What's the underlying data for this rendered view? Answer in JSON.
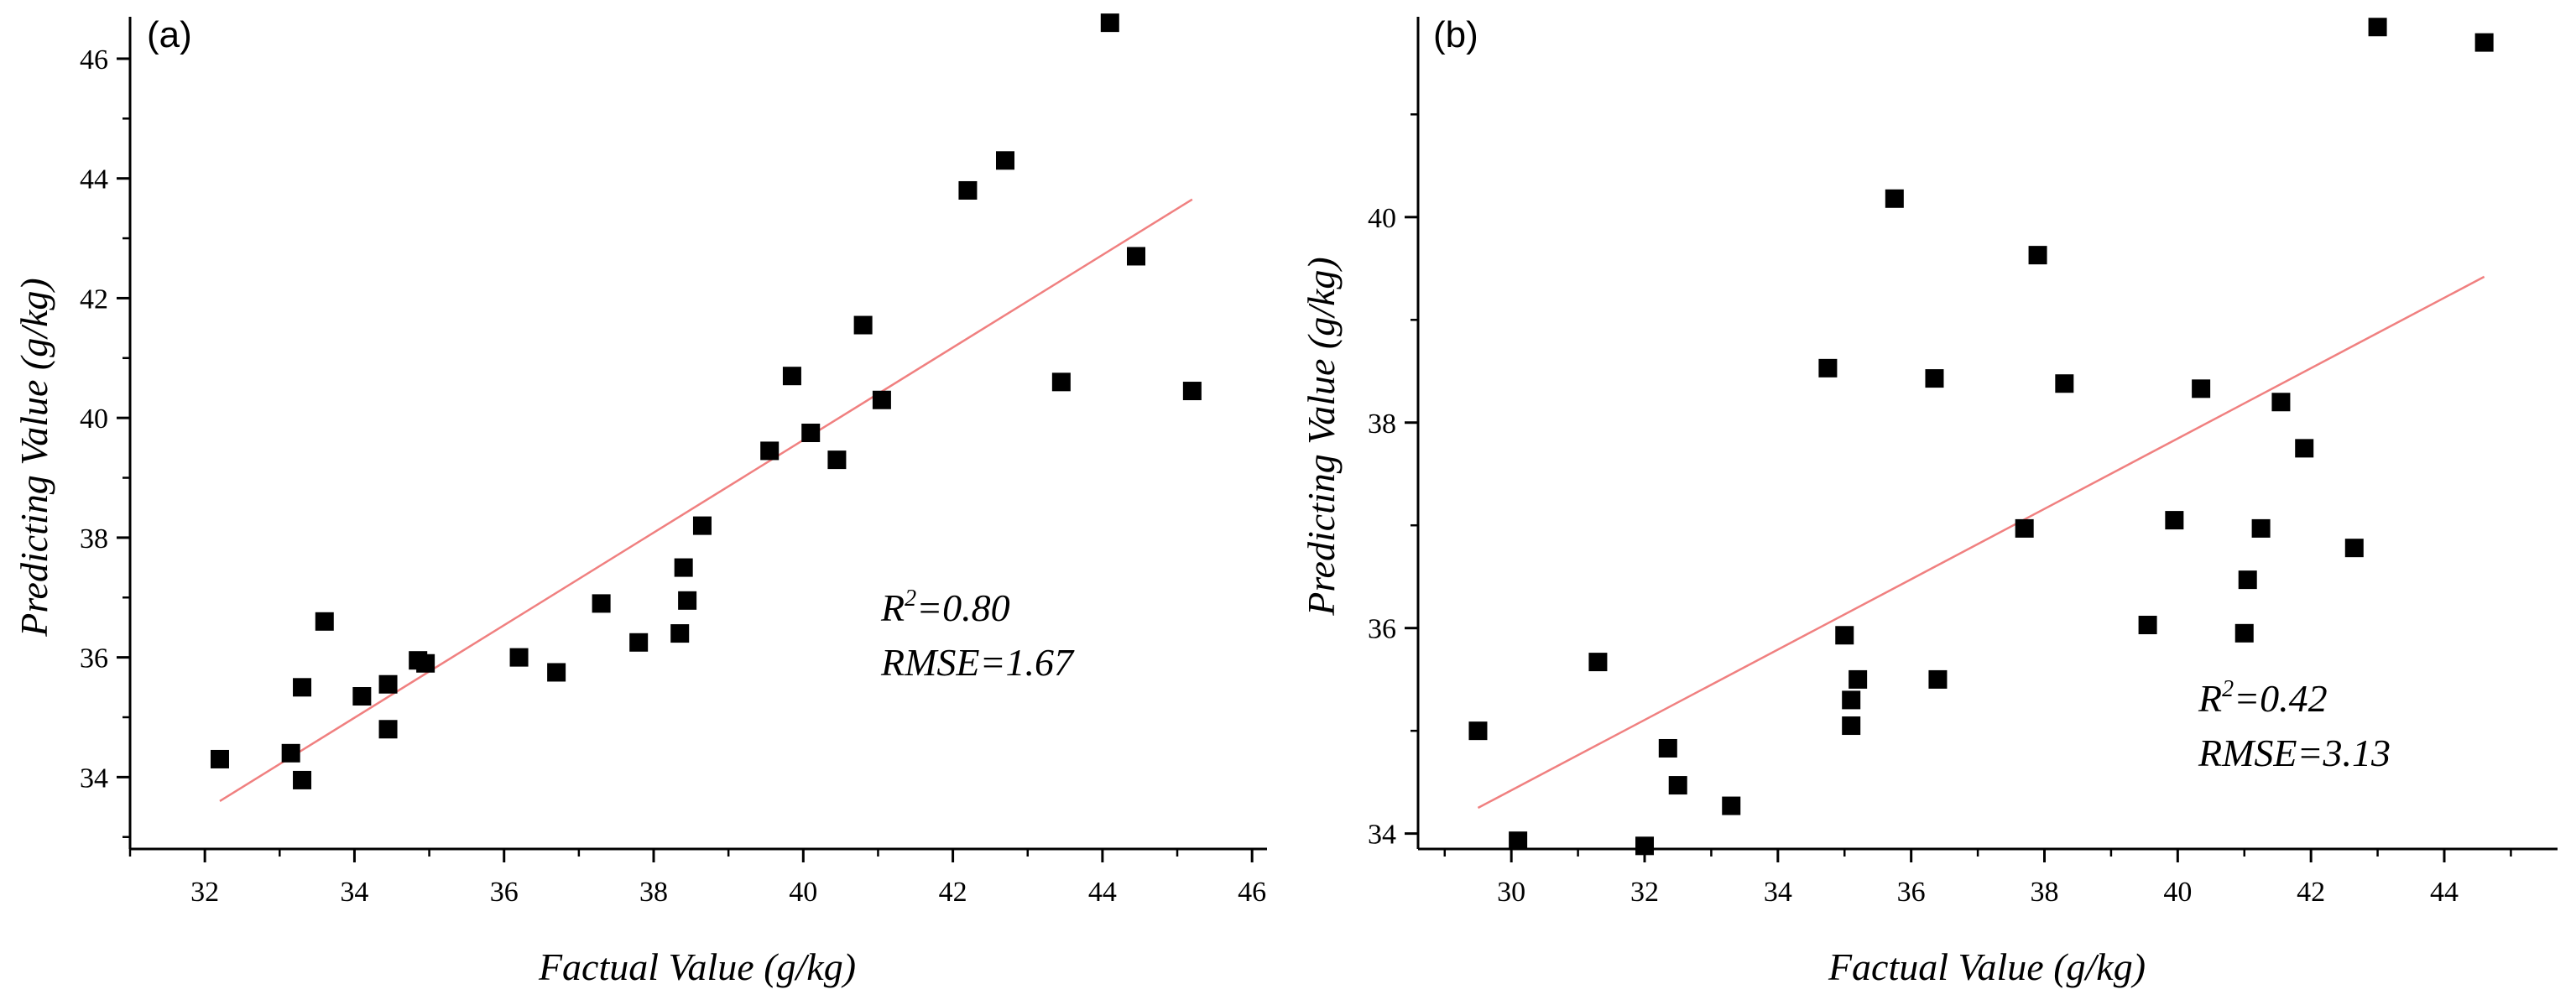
{
  "chart_data": [
    {
      "type": "scatter",
      "panel_label": "(a)",
      "xlabel": "Factual Value (g/kg)",
      "ylabel": "Predicting Value (g/kg)",
      "xlim": [
        31,
        46.2
      ],
      "ylim": [
        32.8,
        46.7
      ],
      "xticks": [
        32,
        34,
        36,
        38,
        40,
        42,
        44,
        46
      ],
      "yticks": [
        34,
        36,
        38,
        40,
        42,
        44,
        46
      ],
      "stats": {
        "r2_label": "R",
        "r2_sup": "2",
        "r2_value": "=0.80",
        "rmse": "RMSE=1.67"
      },
      "fit_line": {
        "x": [
          32.2,
          45.2
        ],
        "y": [
          33.6,
          43.65
        ],
        "color": "#f08080"
      },
      "points": [
        [
          32.2,
          34.3
        ],
        [
          33.15,
          34.4
        ],
        [
          33.3,
          33.95
        ],
        [
          33.3,
          35.5
        ],
        [
          33.6,
          36.6
        ],
        [
          34.1,
          35.35
        ],
        [
          34.45,
          35.55
        ],
        [
          34.45,
          34.8
        ],
        [
          34.85,
          35.95
        ],
        [
          34.95,
          35.9
        ],
        [
          36.2,
          36.0
        ],
        [
          36.7,
          35.75
        ],
        [
          37.3,
          36.9
        ],
        [
          37.8,
          36.25
        ],
        [
          38.35,
          36.4
        ],
        [
          38.4,
          37.5
        ],
        [
          38.45,
          36.95
        ],
        [
          38.65,
          38.2
        ],
        [
          39.55,
          39.45
        ],
        [
          39.85,
          40.7
        ],
        [
          40.1,
          39.75
        ],
        [
          40.45,
          39.3
        ],
        [
          40.8,
          41.55
        ],
        [
          41.05,
          40.3
        ],
        [
          42.2,
          43.8
        ],
        [
          42.7,
          44.3
        ],
        [
          43.45,
          40.6
        ],
        [
          44.1,
          46.6
        ],
        [
          44.45,
          42.7
        ],
        [
          45.2,
          40.45
        ]
      ]
    },
    {
      "type": "scatter",
      "panel_label": "(b)",
      "xlabel": "Factual Value (g/kg)",
      "ylabel": "Predicting Value (g/kg)",
      "xlim": [
        28.6,
        45.7
      ],
      "ylim": [
        33.85,
        41.95
      ],
      "xticks": [
        30,
        32,
        34,
        36,
        38,
        40,
        42,
        44
      ],
      "yticks": [
        34,
        36,
        38,
        40
      ],
      "stats": {
        "r2_label": "R",
        "r2_sup": "2",
        "r2_value": "=0.42",
        "rmse": "RMSE=3.13"
      },
      "fit_line": {
        "x": [
          29.5,
          44.6
        ],
        "y": [
          34.25,
          39.42
        ],
        "color": "#f08080"
      },
      "points": [
        [
          29.5,
          35.0
        ],
        [
          30.1,
          33.93
        ],
        [
          31.3,
          35.67
        ],
        [
          32.0,
          33.88
        ],
        [
          32.35,
          34.83
        ],
        [
          32.5,
          34.47
        ],
        [
          33.3,
          34.27
        ],
        [
          34.75,
          38.53
        ],
        [
          35.0,
          35.93
        ],
        [
          35.1,
          35.05
        ],
        [
          35.1,
          35.3
        ],
        [
          35.2,
          35.5
        ],
        [
          35.75,
          40.18
        ],
        [
          36.35,
          38.43
        ],
        [
          36.4,
          35.5
        ],
        [
          37.7,
          36.97
        ],
        [
          37.9,
          39.63
        ],
        [
          38.3,
          38.38
        ],
        [
          39.55,
          36.03
        ],
        [
          39.95,
          37.05
        ],
        [
          40.35,
          38.33
        ],
        [
          41.0,
          35.95
        ],
        [
          41.05,
          36.47
        ],
        [
          41.25,
          36.97
        ],
        [
          41.55,
          38.2
        ],
        [
          41.9,
          37.75
        ],
        [
          42.65,
          36.78
        ],
        [
          43.0,
          41.85
        ],
        [
          44.6,
          41.7
        ]
      ]
    }
  ]
}
